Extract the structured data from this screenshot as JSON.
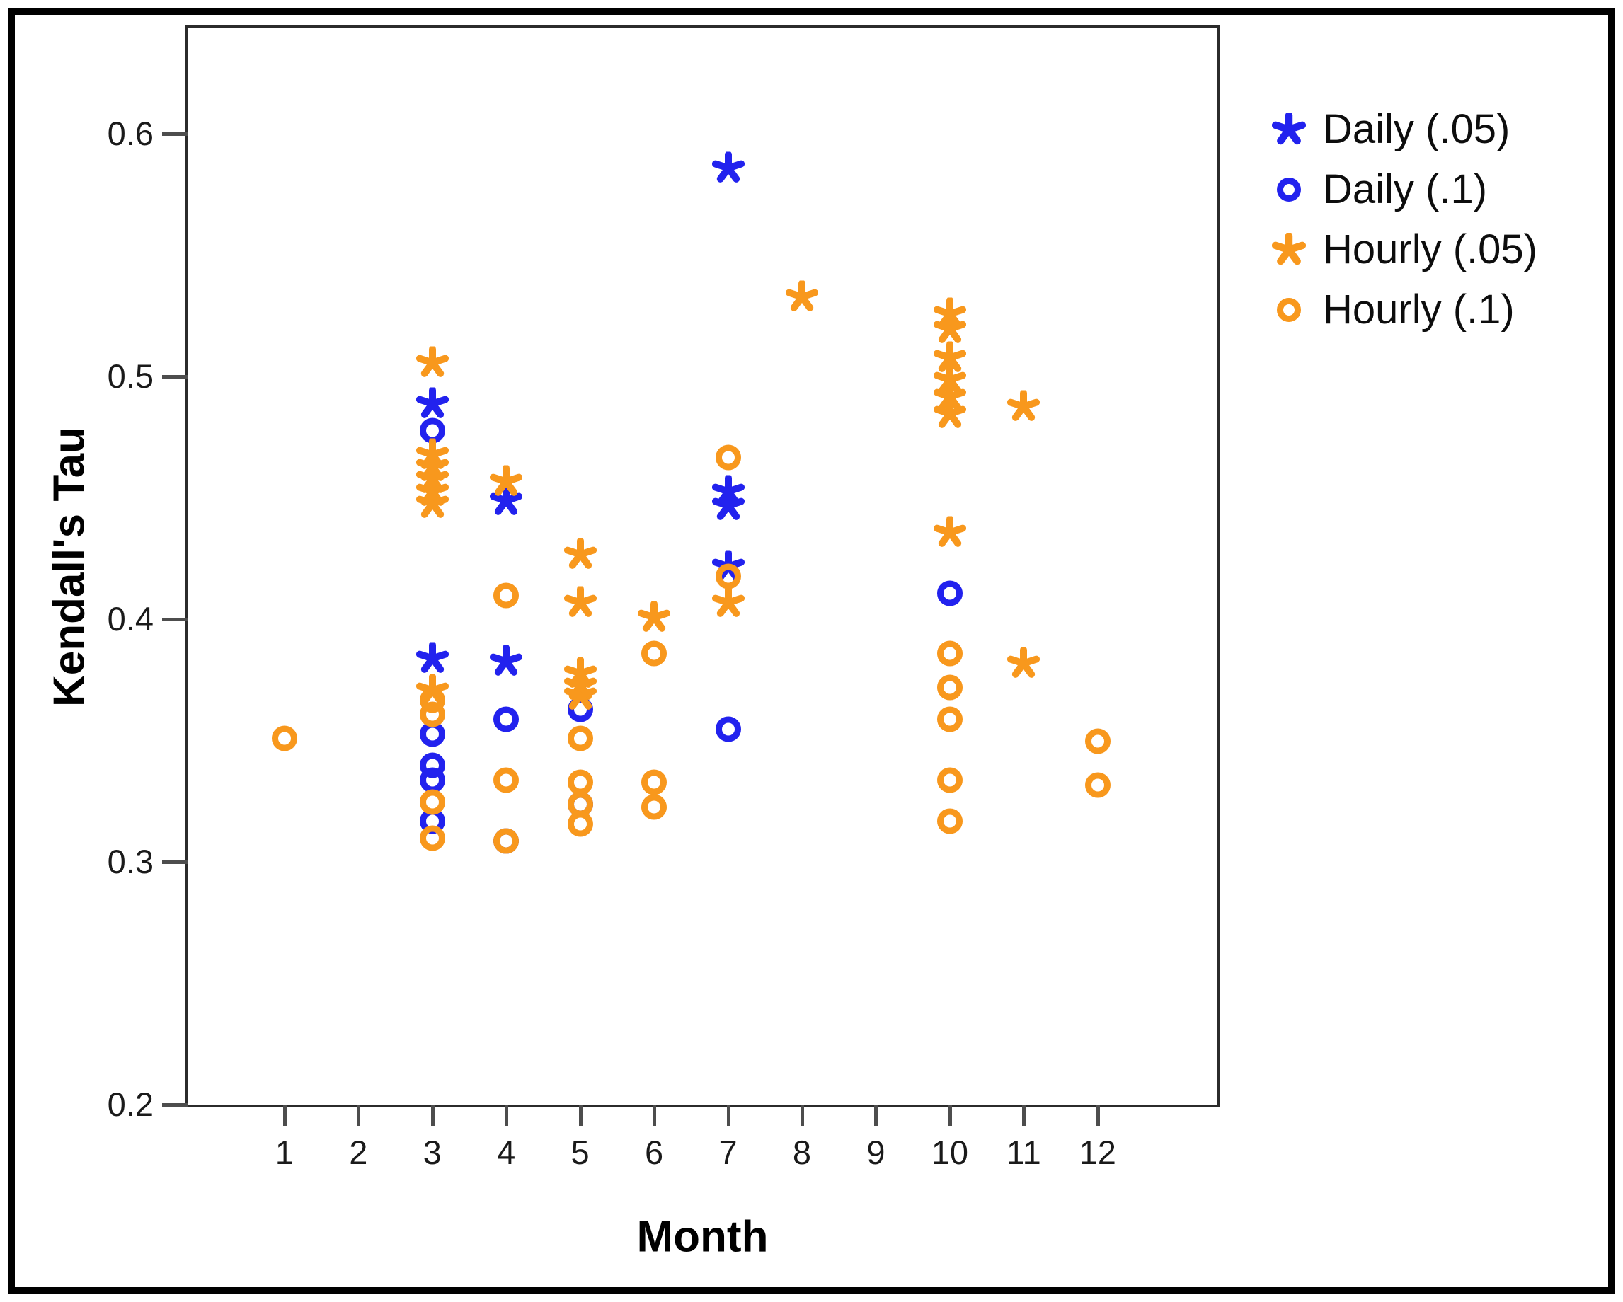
{
  "figure": {
    "background": "#ffffff",
    "border_color": "#000000"
  },
  "chart_data": {
    "type": "scatter",
    "title": "",
    "xlabel": "Month",
    "ylabel": "Kendall's Tau",
    "x_ticks": [
      1,
      2,
      3,
      4,
      5,
      6,
      7,
      8,
      9,
      10,
      11,
      12
    ],
    "y_ticks": [
      0.2,
      0.3,
      0.4,
      0.5,
      0.6
    ],
    "xlim": [
      -0.31,
      13.62
    ],
    "ylim": [
      0.2,
      0.6434
    ],
    "grid": false,
    "legend_position": "right",
    "colors": {
      "daily_blue": "#2222EE",
      "hourly_orange": "#F8981D"
    },
    "legend": [
      {
        "label": "Daily (.05)",
        "marker": "star",
        "color": "#2222EE"
      },
      {
        "label": "Daily (.1)",
        "marker": "circle",
        "color": "#2222EE"
      },
      {
        "label": "Hourly (.05)",
        "marker": "star",
        "color": "#F8981D"
      },
      {
        "label": "Hourly (.1)",
        "marker": "circle",
        "color": "#F8981D"
      }
    ],
    "series": [
      {
        "name": "Daily (.05)",
        "marker": "star",
        "color": "#2222EE",
        "points": [
          [
            3,
            0.488
          ],
          [
            3,
            0.383
          ],
          [
            4,
            0.448
          ],
          [
            4,
            0.382
          ],
          [
            7,
            0.585
          ],
          [
            7,
            0.452
          ],
          [
            7,
            0.446
          ],
          [
            7,
            0.421
          ]
        ]
      },
      {
        "name": "Daily (.1)",
        "marker": "circle",
        "color": "#2222EE",
        "points": [
          [
            3,
            0.477
          ],
          [
            3,
            0.352
          ],
          [
            3,
            0.339
          ],
          [
            3,
            0.333
          ],
          [
            3,
            0.316
          ],
          [
            4,
            0.358
          ],
          [
            4,
            0.308
          ],
          [
            5,
            0.362
          ],
          [
            5,
            0.323
          ],
          [
            7,
            0.354
          ],
          [
            10,
            0.41
          ]
        ]
      },
      {
        "name": "Hourly (.05)",
        "marker": "star",
        "color": "#F8981D",
        "points": [
          [
            3,
            0.505
          ],
          [
            3,
            0.467
          ],
          [
            3,
            0.462
          ],
          [
            3,
            0.457
          ],
          [
            3,
            0.452
          ],
          [
            3,
            0.447
          ],
          [
            3,
            0.37
          ],
          [
            4,
            0.456
          ],
          [
            5,
            0.426
          ],
          [
            5,
            0.406
          ],
          [
            5,
            0.377
          ],
          [
            5,
            0.372
          ],
          [
            5,
            0.368
          ],
          [
            6,
            0.4
          ],
          [
            7,
            0.406
          ],
          [
            8,
            0.532
          ],
          [
            10,
            0.525
          ],
          [
            10,
            0.519
          ],
          [
            10,
            0.507
          ],
          [
            10,
            0.498
          ],
          [
            10,
            0.491
          ],
          [
            10,
            0.484
          ],
          [
            10,
            0.435
          ],
          [
            11,
            0.487
          ],
          [
            11,
            0.381
          ]
        ]
      },
      {
        "name": "Hourly (.1)",
        "marker": "circle",
        "color": "#F8981D",
        "points": [
          [
            1,
            0.35
          ],
          [
            3,
            0.366
          ],
          [
            3,
            0.36
          ],
          [
            3,
            0.324
          ],
          [
            3,
            0.309
          ],
          [
            4,
            0.409
          ],
          [
            4,
            0.333
          ],
          [
            4,
            0.308
          ],
          [
            5,
            0.35
          ],
          [
            5,
            0.332
          ],
          [
            5,
            0.323
          ],
          [
            5,
            0.315
          ],
          [
            6,
            0.385
          ],
          [
            6,
            0.332
          ],
          [
            6,
            0.322
          ],
          [
            7,
            0.466
          ],
          [
            7,
            0.417
          ],
          [
            10,
            0.385
          ],
          [
            10,
            0.371
          ],
          [
            10,
            0.358
          ],
          [
            10,
            0.333
          ],
          [
            10,
            0.316
          ],
          [
            12,
            0.349
          ],
          [
            12,
            0.331
          ]
        ]
      }
    ]
  }
}
